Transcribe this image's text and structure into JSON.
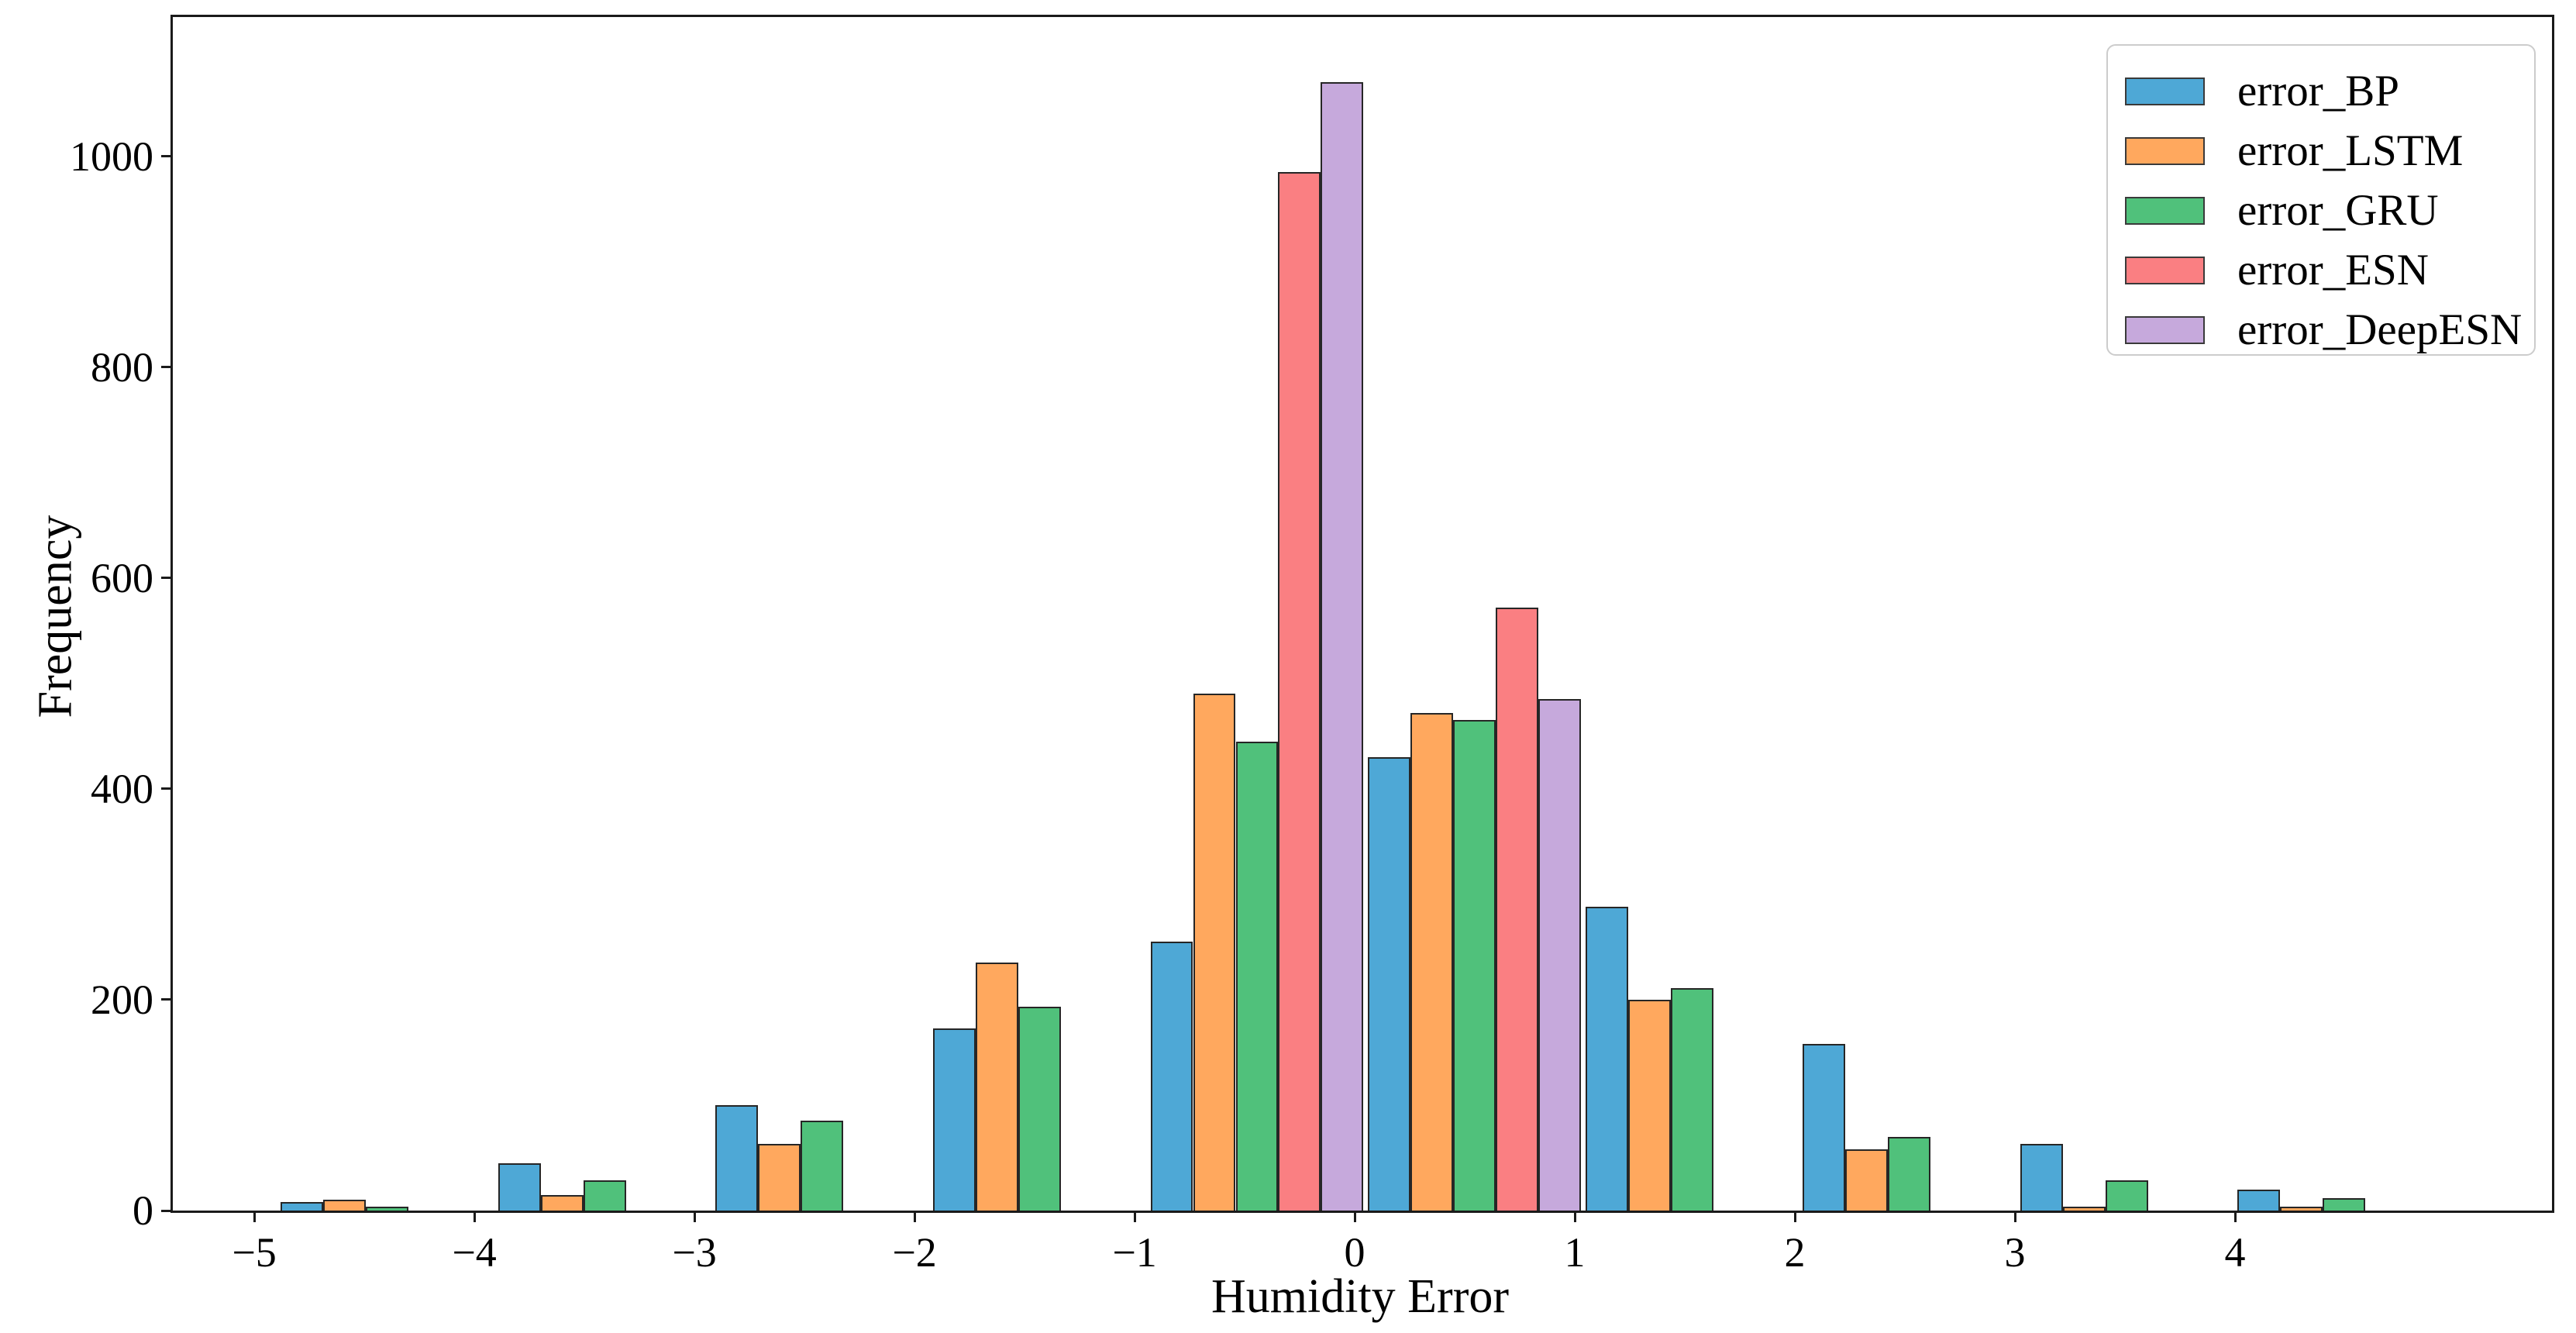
{
  "chart_data": {
    "type": "bar",
    "subtype": "grouped-histogram",
    "title": "",
    "xlabel": "Humidity Error",
    "ylabel": "Frequency",
    "x_ticks": [
      -5,
      -4,
      -3,
      -2,
      -1,
      0,
      1,
      2,
      3,
      4
    ],
    "x_tick_labels": [
      "−5",
      "−4",
      "−3",
      "−2",
      "−1",
      "0",
      "1",
      "2",
      "3",
      "4"
    ],
    "y_ticks": [
      0,
      200,
      400,
      600,
      800,
      1000
    ],
    "y_tick_labels": [
      "0",
      "200",
      "400",
      "600",
      "800",
      "1000"
    ],
    "xlim": [
      -5.37,
      5.44
    ],
    "ylim": [
      0,
      1132
    ],
    "grid": false,
    "legend_position": "upper right",
    "bin_left_edges": [
      -4.88,
      -3.892,
      -2.904,
      -1.916,
      -0.928,
      0.06,
      1.048,
      2.036,
      3.024,
      4.012
    ],
    "bin_width": 0.988,
    "series": [
      {
        "name": "error_BP",
        "color": "#4ea8d6",
        "values": [
          8,
          45,
          100,
          173,
          255,
          430,
          288,
          158,
          63,
          20
        ]
      },
      {
        "name": "error_LSTM",
        "color": "#ffa85e",
        "values": [
          10,
          15,
          63,
          235,
          490,
          472,
          200,
          58,
          4,
          4
        ]
      },
      {
        "name": "error_GRU",
        "color": "#50c17b",
        "values": [
          4,
          29,
          85,
          193,
          445,
          465,
          211,
          70,
          29,
          12
        ]
      },
      {
        "name": "error_ESN",
        "color": "#fa7f82",
        "values": [
          0,
          0,
          0,
          0,
          985,
          572,
          0,
          0,
          0,
          0
        ]
      },
      {
        "name": "error_DeepESN",
        "color": "#c6a9dc",
        "values": [
          0,
          0,
          0,
          0,
          1070,
          485,
          0,
          0,
          0,
          0
        ]
      }
    ],
    "bar_edge_color": "#262626",
    "axis_color": "#1a1a1a"
  }
}
